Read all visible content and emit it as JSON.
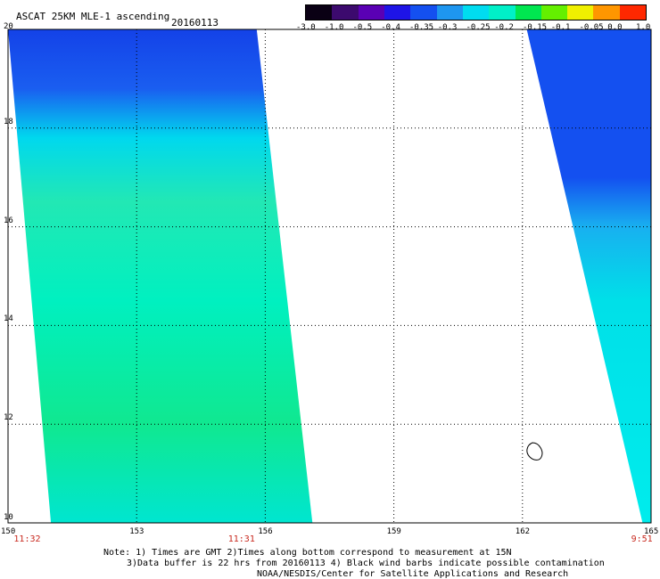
{
  "header": {
    "product": "ASCAT 25KM MLE-1 ascending",
    "date": "20160113"
  },
  "colorbar": {
    "labels": [
      "-3.0",
      "-1.0",
      "-0.5",
      "-0.4",
      "-0.35",
      "-0.3",
      "-0.25",
      "-0.2",
      "-0.15",
      "-0.1",
      "-0.05",
      "0.0",
      "1.0"
    ],
    "colors": [
      "#0a0014",
      "#3c0a6e",
      "#5a00b4",
      "#1e14e6",
      "#1450f0",
      "#1e96f0",
      "#00dcf0",
      "#00f0c8",
      "#00e650",
      "#64f000",
      "#f0f000",
      "#ff9600",
      "#ff2800"
    ]
  },
  "map": {
    "lon_labels": [
      "150",
      "153",
      "156",
      "159",
      "162",
      "165"
    ],
    "lat_labels": [
      "20",
      "18",
      "16",
      "14",
      "12",
      "10"
    ],
    "times": [
      {
        "label": "11:32",
        "lon": 150.3
      },
      {
        "label": "11:31",
        "lon": 155.3
      },
      {
        "label": "9:51",
        "lon": 164.7
      }
    ],
    "swaths": [
      {
        "name": "western-swath",
        "corners_lonlat": [
          [
            150.0,
            20.0
          ],
          [
            155.8,
            20.0
          ],
          [
            157.1,
            10.0
          ],
          [
            151.0,
            10.0
          ]
        ]
      },
      {
        "name": "eastern-swath",
        "corners_lonlat": [
          [
            162.1,
            20.0
          ],
          [
            165.0,
            20.0
          ],
          [
            165.0,
            10.0
          ],
          [
            164.8,
            10.0
          ]
        ]
      }
    ]
  },
  "footer": {
    "line1": "Note: 1) Times are GMT 2)Times along bottom correspond to measurement at 15N",
    "line2": "3)Data buffer is 22 hrs from 20160113 4) Black wind barbs indicate possible contamination",
    "line3": "NOAA/NESDIS/Center for Satellite Applications and Research"
  }
}
